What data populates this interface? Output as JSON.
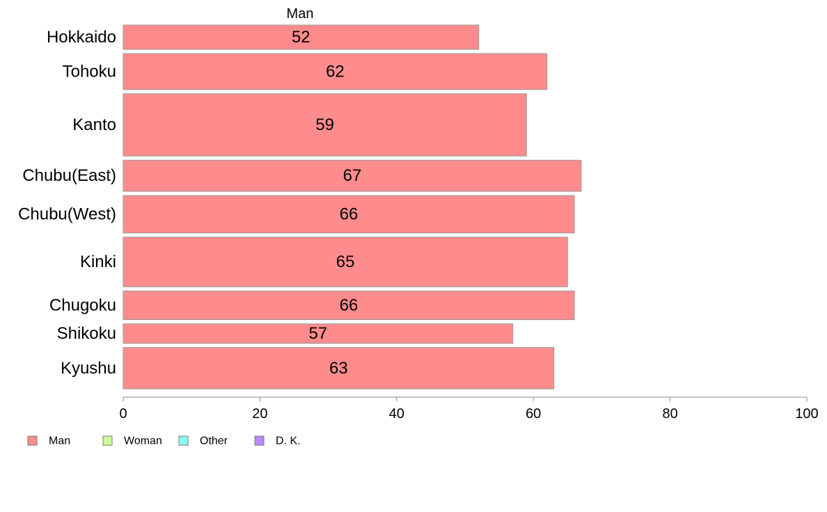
{
  "chart_data": {
    "type": "bar",
    "orientation": "horizontal",
    "series_header": "Man",
    "categories": [
      "Hokkaido",
      "Tohoku",
      "Kanto",
      "Chubu(East)",
      "Chubu(West)",
      "Kinki",
      "Chugoku",
      "Shikoku",
      "Kyushu"
    ],
    "series": [
      {
        "name": "Man",
        "values": [
          52,
          62,
          59,
          67,
          66,
          65,
          66,
          57,
          63
        ]
      }
    ],
    "bar_relative_thickness": [
      1.0,
      1.48,
      2.56,
      1.28,
      1.54,
      2.04,
      1.18,
      0.8,
      1.7
    ],
    "xlim": [
      0,
      100
    ],
    "xticks": [
      0,
      20,
      40,
      60,
      80,
      100
    ],
    "legend": {
      "placement": "bottom-left",
      "items": [
        {
          "label": "Man",
          "color": "#ff8c8c"
        },
        {
          "label": "Woman",
          "color": "#ccff99"
        },
        {
          "label": "Other",
          "color": "#88ffee"
        },
        {
          "label": "D. K.",
          "color": "#bb88ff"
        }
      ]
    },
    "colors": {
      "bar_fill": "#ff8c8c",
      "bar_stroke": "#999999",
      "axis": "#888888"
    },
    "grid": false
  }
}
